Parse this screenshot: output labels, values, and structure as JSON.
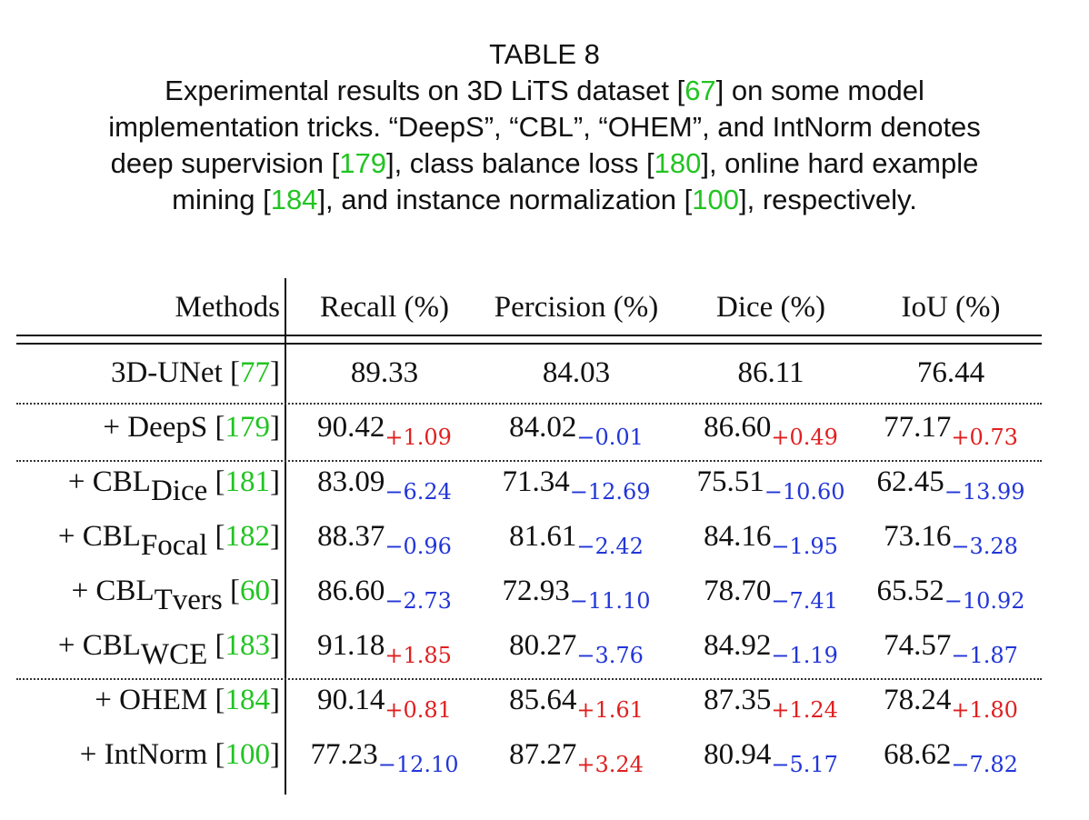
{
  "caption": {
    "label": "TABLE 8",
    "line1_pre": "Experimental results on 3D LiTS dataset [",
    "line1_ref": "67",
    "line1_post": "] on some model",
    "line2": "implementation tricks. “DeepS”, “CBL”, “OHEM”, and IntNorm denotes",
    "line3_pre": "deep supervision [",
    "line3_ref1": "179",
    "line3_mid": "], class balance loss [",
    "line3_ref2": "180",
    "line3_post": "], online hard example",
    "line4_pre": "mining [",
    "line4_ref1": "184",
    "line4_mid": "], and instance normalization [",
    "line4_ref2": "100",
    "line4_post": "], respectively."
  },
  "table": {
    "headers": [
      "Methods",
      "Recall (%)",
      "Percision (%)",
      "Dice (%)",
      "IoU (%)"
    ],
    "rows": [
      {
        "pre": "3D-UNet [",
        "sub": "",
        "ref": "77",
        "post": "]",
        "vals": [
          "89.33",
          "84.03",
          "86.11",
          "76.44"
        ],
        "deltas": [
          "",
          "",
          "",
          ""
        ]
      },
      {
        "pre": "+ DeepS [",
        "sub": "",
        "ref": "179",
        "post": "]",
        "vals": [
          "90.42",
          "84.02",
          "86.60",
          "77.17"
        ],
        "deltas": [
          "+1.09",
          "−0.01",
          "+0.49",
          "+0.73"
        ]
      },
      {
        "pre": "+ CBL",
        "sub": "Dice",
        "ref": "181",
        "post": "]",
        "vals": [
          "83.09",
          "71.34",
          "75.51",
          "62.45"
        ],
        "deltas": [
          "−6.24",
          "−12.69",
          "−10.60",
          "−13.99"
        ]
      },
      {
        "pre": "+ CBL",
        "sub": "Focal",
        "ref": "182",
        "post": "]",
        "vals": [
          "88.37",
          "81.61",
          "84.16",
          "73.16"
        ],
        "deltas": [
          "−0.96",
          "−2.42",
          "−1.95",
          "−3.28"
        ]
      },
      {
        "pre": "+ CBL",
        "sub": "Tvers",
        "ref": "60",
        "post": "]",
        "vals": [
          "86.60",
          "72.93",
          "78.70",
          "65.52"
        ],
        "deltas": [
          "−2.73",
          "−11.10",
          "−7.41",
          "−10.92"
        ]
      },
      {
        "pre": "+ CBL",
        "sub": "WCE",
        "ref": "183",
        "post": "]",
        "vals": [
          "91.18",
          "80.27",
          "84.92",
          "74.57"
        ],
        "deltas": [
          "+1.85",
          "−3.76",
          "−1.19",
          "−1.87"
        ]
      },
      {
        "pre": "+ OHEM [",
        "sub": "",
        "ref": "184",
        "post": "]",
        "vals": [
          "90.14",
          "85.64",
          "87.35",
          "78.24"
        ],
        "deltas": [
          "+0.81",
          "+1.61",
          "+1.24",
          "+1.80"
        ]
      },
      {
        "pre": "+ IntNorm [",
        "sub": "",
        "ref": "100",
        "post": "]",
        "vals": [
          "77.23",
          "87.27",
          "80.94",
          "68.62"
        ],
        "deltas": [
          "−12.10",
          "+3.24",
          "−5.17",
          "−7.82"
        ]
      }
    ]
  },
  "colors": {
    "ref": "#22c422",
    "positive": "#e02020",
    "negative": "#2236d8"
  }
}
